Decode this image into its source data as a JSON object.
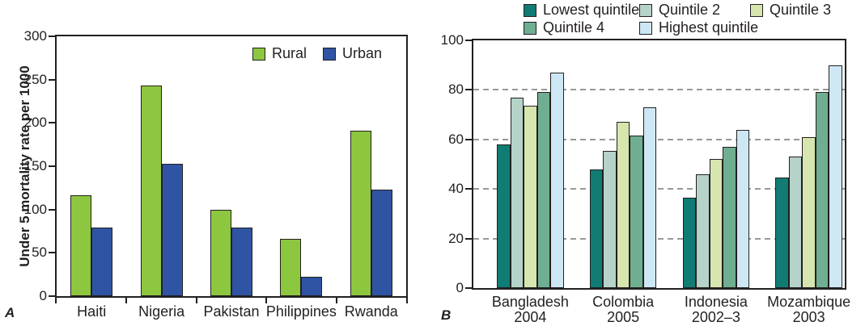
{
  "figure": {
    "panel_a_label": "A",
    "panel_b_label": "B"
  },
  "colors": {
    "frame": "#231f20",
    "gridline": "#989898",
    "rural": "#8dc63f",
    "urban": "#2f54a3",
    "lowest_quintile": "#107c74",
    "quintile_2": "#b5d3c9",
    "quintile_3": "#d7e5af",
    "quintile_4": "#6fae90",
    "highest_quintile": "#cde8f4"
  },
  "chart_data": [
    {
      "id": "A",
      "type": "bar",
      "title": "",
      "xlabel": "",
      "ylabel": "Under 5 mortality rate per 1000",
      "ylim": [
        0,
        300
      ],
      "yticks": [
        0,
        50,
        100,
        150,
        200,
        250,
        300
      ],
      "grid": false,
      "legend_position": "inside-top-right",
      "categories": [
        "Haiti",
        "Nigeria",
        "Pakistan",
        "Philippines",
        "Rwanda"
      ],
      "series": [
        {
          "name": "Rural",
          "color": "#8dc63f",
          "values": [
            116,
            243,
            100,
            66,
            191
          ]
        },
        {
          "name": "Urban",
          "color": "#2f54a3",
          "values": [
            79,
            153,
            79,
            22,
            123
          ]
        }
      ]
    },
    {
      "id": "B",
      "type": "bar",
      "title": "",
      "xlabel": "",
      "ylabel": "",
      "ylim": [
        0,
        100
      ],
      "yticks": [
        0,
        20,
        40,
        60,
        80,
        100
      ],
      "grid": true,
      "legend_position": "above",
      "categories": [
        [
          "Bangladesh",
          "2004"
        ],
        [
          "Colombia",
          "2005"
        ],
        [
          "Indonesia",
          "2002–3"
        ],
        [
          "Mozambique",
          "2003"
        ]
      ],
      "series": [
        {
          "name": "Lowest quintile",
          "color": "#107c74",
          "values": [
            58,
            48,
            36.5,
            44.5
          ]
        },
        {
          "name": "Quintile 2",
          "color": "#b5d3c9",
          "values": [
            77,
            55.5,
            46,
            53
          ]
        },
        {
          "name": "Quintile 3",
          "color": "#d7e5af",
          "values": [
            73.5,
            67,
            52,
            61
          ]
        },
        {
          "name": "Quintile 4",
          "color": "#6fae90",
          "values": [
            79,
            61.5,
            57,
            79
          ]
        },
        {
          "name": "Highest quintile",
          "color": "#cde8f4",
          "values": [
            87,
            73,
            64,
            90
          ]
        }
      ]
    }
  ]
}
